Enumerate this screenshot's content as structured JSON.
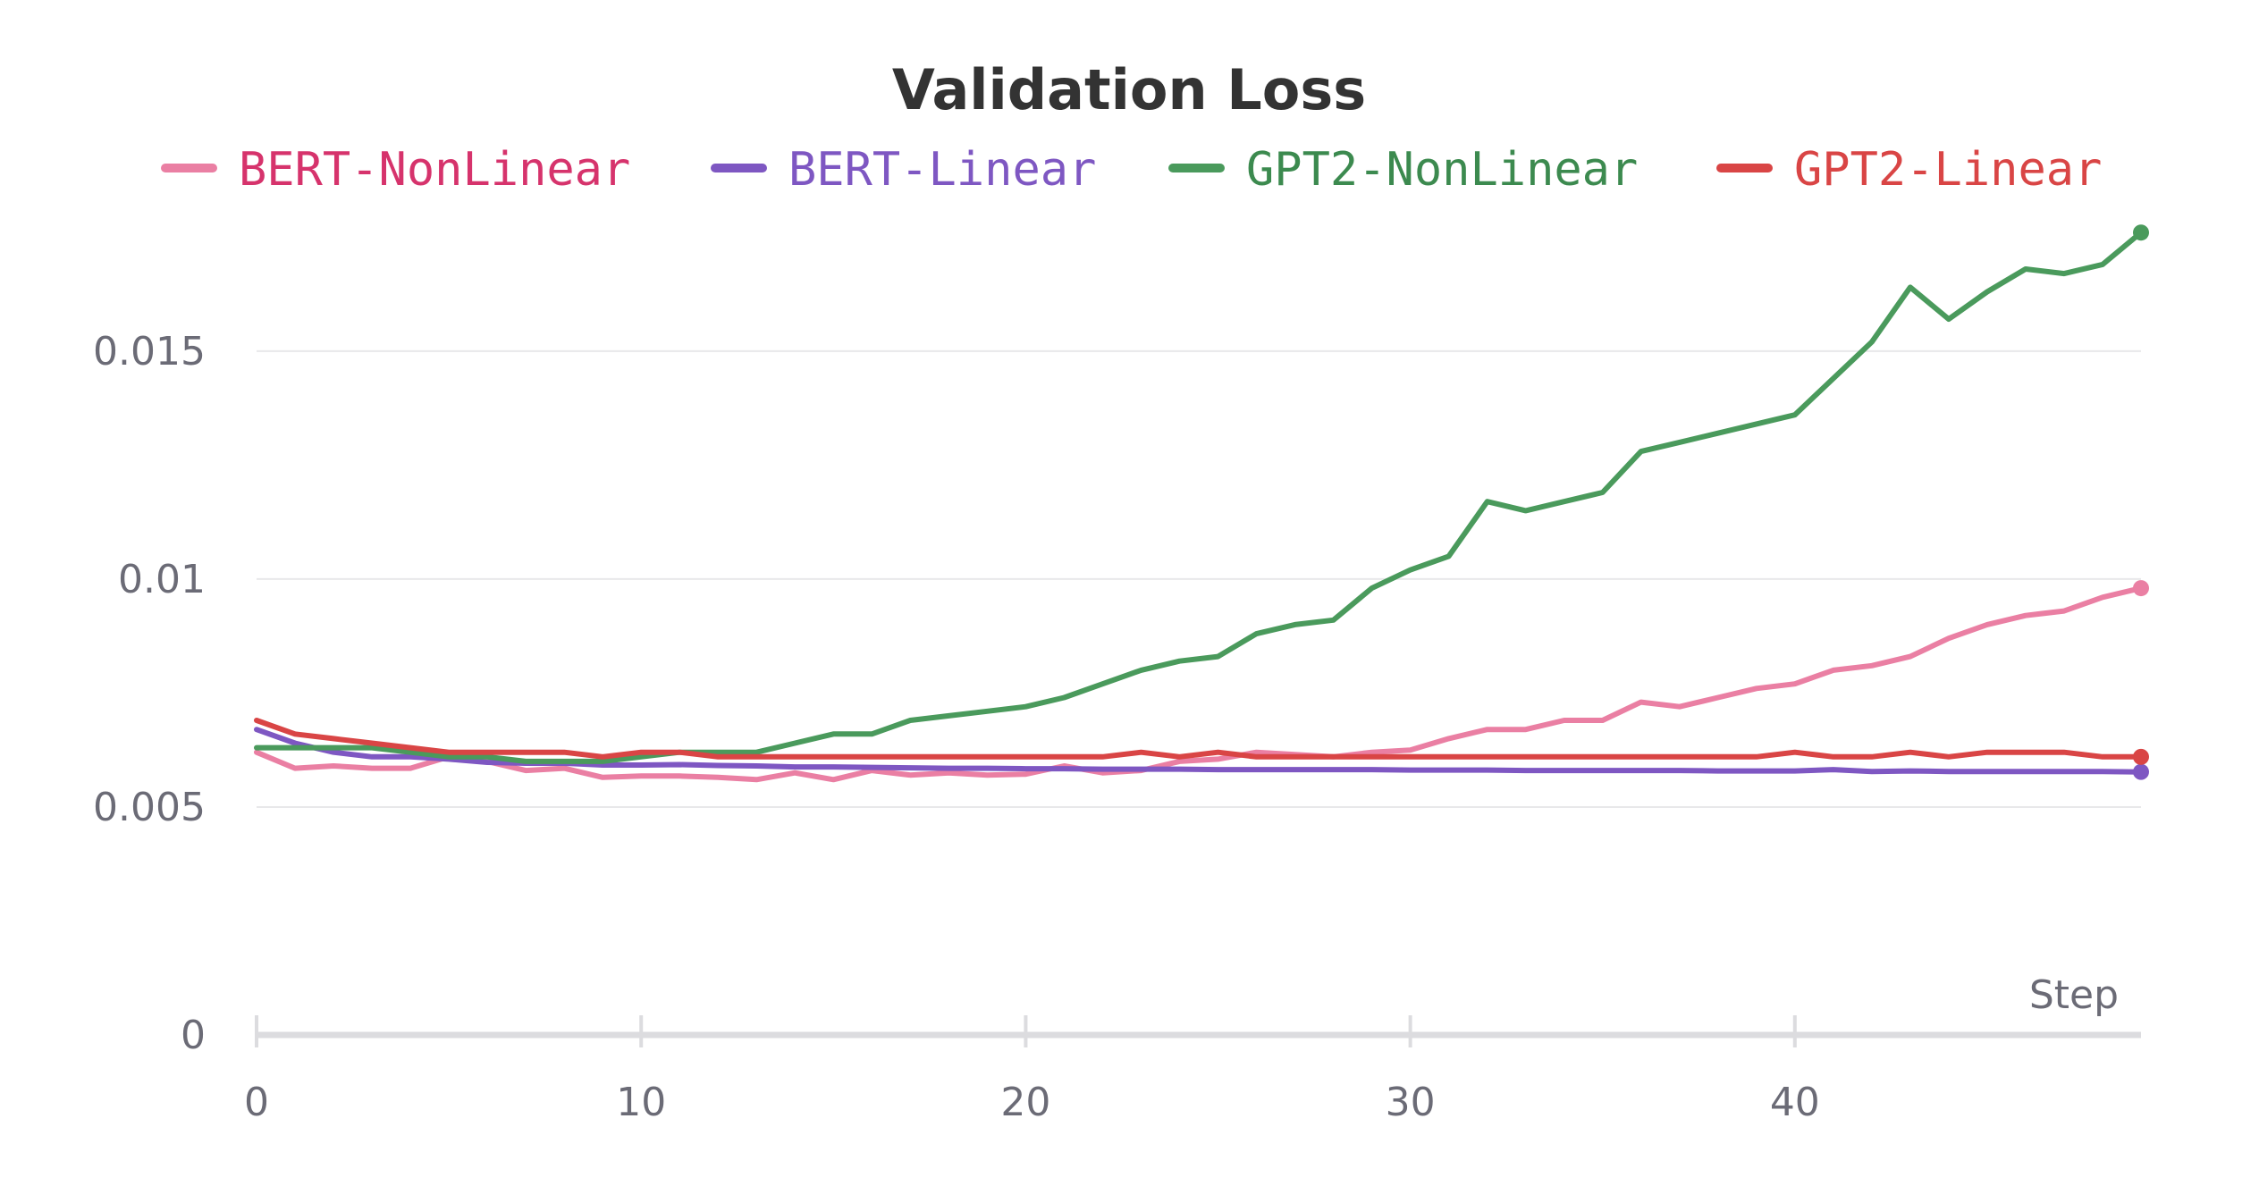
{
  "chart_data": {
    "type": "line",
    "title": "Validation Loss",
    "xlabel": "Step",
    "ylabel": "",
    "xlim": [
      0,
      49
    ],
    "ylim": [
      0,
      0.0178
    ],
    "xticks": [
      0,
      10,
      20,
      30,
      40
    ],
    "xtick_labels": [
      "0",
      "10",
      "20",
      "30",
      "40"
    ],
    "yticks": [
      0,
      0.005,
      0.01,
      0.015
    ],
    "ytick_labels": [
      "0",
      "0.005",
      "0.01",
      "0.015"
    ],
    "grid": true,
    "legend_position": "top",
    "x": [
      0,
      1,
      2,
      3,
      4,
      5,
      6,
      7,
      8,
      9,
      10,
      11,
      12,
      13,
      14,
      15,
      16,
      17,
      18,
      19,
      20,
      21,
      22,
      23,
      24,
      25,
      26,
      27,
      28,
      29,
      30,
      31,
      32,
      33,
      34,
      35,
      36,
      37,
      38,
      39,
      40,
      41,
      42,
      43,
      44,
      45,
      46,
      47,
      48,
      49
    ],
    "series": [
      {
        "name": "BERT-NonLinear",
        "color": "#ea7fa3",
        "text_color": "#d6336c",
        "values": [
          0.0062,
          0.00585,
          0.0059,
          0.00585,
          0.00585,
          0.0061,
          0.006,
          0.0058,
          0.00585,
          0.00565,
          0.00568,
          0.00568,
          0.00565,
          0.0056,
          0.00575,
          0.0056,
          0.0058,
          0.0057,
          0.00575,
          0.0057,
          0.00572,
          0.0059,
          0.00575,
          0.0058,
          0.006,
          0.00605,
          0.0062,
          0.00615,
          0.0061,
          0.0062,
          0.00625,
          0.0065,
          0.0067,
          0.0067,
          0.0069,
          0.0069,
          0.0073,
          0.0072,
          0.0074,
          0.0076,
          0.0077,
          0.008,
          0.0081,
          0.0083,
          0.0087,
          0.009,
          0.0092,
          0.0093,
          0.0096,
          0.0098
        ]
      },
      {
        "name": "BERT-Linear",
        "color": "#7e57c2",
        "text_color": "#7e57c2",
        "values": [
          0.0067,
          0.0064,
          0.0062,
          0.0061,
          0.0061,
          0.00605,
          0.00598,
          0.00596,
          0.00596,
          0.00592,
          0.00592,
          0.00593,
          0.00591,
          0.0059,
          0.00588,
          0.00588,
          0.00587,
          0.00586,
          0.00585,
          0.00585,
          0.00584,
          0.00584,
          0.00583,
          0.00583,
          0.00583,
          0.00582,
          0.00582,
          0.00582,
          0.00582,
          0.00582,
          0.00581,
          0.00581,
          0.00581,
          0.0058,
          0.0058,
          0.0058,
          0.0058,
          0.0058,
          0.00579,
          0.00579,
          0.00579,
          0.00582,
          0.00578,
          0.00579,
          0.00578,
          0.00578,
          0.00578,
          0.00578,
          0.00578,
          0.00577
        ]
      },
      {
        "name": "GPT2-NonLinear",
        "color": "#4a9a5c",
        "text_color": "#3c8a4f",
        "values": [
          0.0063,
          0.0063,
          0.0063,
          0.0063,
          0.0062,
          0.0061,
          0.0061,
          0.006,
          0.006,
          0.006,
          0.0061,
          0.0062,
          0.0062,
          0.0062,
          0.0064,
          0.0066,
          0.0066,
          0.0069,
          0.007,
          0.0071,
          0.0072,
          0.0074,
          0.0077,
          0.008,
          0.0082,
          0.0083,
          0.0088,
          0.009,
          0.0091,
          0.0098,
          0.0102,
          0.0105,
          0.0117,
          0.0115,
          0.0117,
          0.0119,
          0.0128,
          0.013,
          0.0132,
          0.0134,
          0.0136,
          0.0144,
          0.0152,
          0.0164,
          0.0157,
          0.0163,
          0.0168,
          0.0167,
          0.0169,
          0.0176
        ]
      },
      {
        "name": "GPT2-Linear",
        "color": "#d94545",
        "text_color": "#d94545",
        "values": [
          0.0069,
          0.0066,
          0.0065,
          0.0064,
          0.0063,
          0.0062,
          0.0062,
          0.0062,
          0.0062,
          0.0061,
          0.0062,
          0.0062,
          0.0061,
          0.0061,
          0.0061,
          0.0061,
          0.0061,
          0.0061,
          0.0061,
          0.0061,
          0.0061,
          0.0061,
          0.0061,
          0.0062,
          0.0061,
          0.0062,
          0.0061,
          0.0061,
          0.0061,
          0.0061,
          0.0061,
          0.0061,
          0.0061,
          0.0061,
          0.0061,
          0.0061,
          0.0061,
          0.0061,
          0.0061,
          0.0061,
          0.0062,
          0.0061,
          0.0061,
          0.0062,
          0.0061,
          0.0062,
          0.0062,
          0.0062,
          0.0061,
          0.0061
        ]
      }
    ]
  }
}
